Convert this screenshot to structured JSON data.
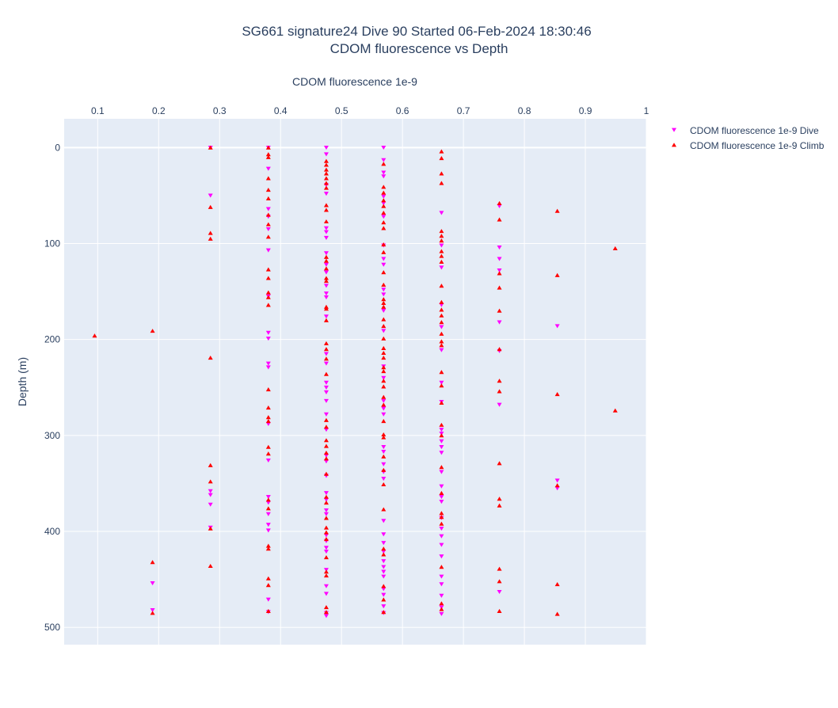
{
  "chart_data": {
    "type": "scatter",
    "title_line1": "SG661 signature24 Dive 90 Started 06-Feb-2024 18:30:46",
    "title_line2": "CDOM fluorescence vs Depth",
    "xlabel": "CDOM fluorescence 1e-9",
    "ylabel": "Depth (m)",
    "xlim": [
      0.045,
      1.0
    ],
    "ylim": [
      518,
      -30
    ],
    "x_axis_side": "top",
    "y_reversed": true,
    "grid": true,
    "x_ticks": [
      0.1,
      0.2,
      0.3,
      0.4,
      0.5,
      0.6,
      0.7,
      0.8,
      0.9,
      1
    ],
    "x_tick_labels": [
      "0.1",
      "0.2",
      "0.3",
      "0.4",
      "0.5",
      "0.6",
      "0.7",
      "0.8",
      "0.9",
      "1"
    ],
    "y_ticks": [
      0,
      100,
      200,
      300,
      400,
      500
    ],
    "y_tick_labels": [
      "0",
      "100",
      "200",
      "300",
      "400",
      "500"
    ],
    "legend_position": "top-right",
    "colors": {
      "plot_bg": "#e5ecf6",
      "grid": "#ffffff",
      "dive": "#ff00ff",
      "climb": "#ff0000"
    },
    "series": [
      {
        "name": "CDOM fluorescence 1e-9 Dive",
        "marker": "triangle-down",
        "color": "#ff00ff",
        "points": [
          [
            0.285,
            0
          ],
          [
            0.285,
            50
          ],
          [
            0.285,
            358
          ],
          [
            0.285,
            362
          ],
          [
            0.285,
            372
          ],
          [
            0.285,
            396
          ],
          [
            0.19,
            454
          ],
          [
            0.19,
            482
          ],
          [
            0.38,
            0
          ],
          [
            0.38,
            22
          ],
          [
            0.38,
            64
          ],
          [
            0.38,
            72
          ],
          [
            0.38,
            85
          ],
          [
            0.38,
            107
          ],
          [
            0.38,
            155
          ],
          [
            0.38,
            193
          ],
          [
            0.38,
            199
          ],
          [
            0.38,
            225
          ],
          [
            0.38,
            229
          ],
          [
            0.38,
            288
          ],
          [
            0.38,
            326
          ],
          [
            0.38,
            364
          ],
          [
            0.38,
            370
          ],
          [
            0.38,
            382
          ],
          [
            0.38,
            393
          ],
          [
            0.38,
            399
          ],
          [
            0.38,
            471
          ],
          [
            0.38,
            484
          ],
          [
            0.475,
            0
          ],
          [
            0.475,
            7
          ],
          [
            0.475,
            39
          ],
          [
            0.475,
            48
          ],
          [
            0.475,
            84
          ],
          [
            0.475,
            88
          ],
          [
            0.475,
            94
          ],
          [
            0.475,
            110
          ],
          [
            0.475,
            122
          ],
          [
            0.475,
            130
          ],
          [
            0.475,
            144
          ],
          [
            0.475,
            152
          ],
          [
            0.475,
            156
          ],
          [
            0.475,
            176
          ],
          [
            0.475,
            215
          ],
          [
            0.475,
            225
          ],
          [
            0.475,
            245
          ],
          [
            0.475,
            250
          ],
          [
            0.475,
            255
          ],
          [
            0.475,
            264
          ],
          [
            0.475,
            278
          ],
          [
            0.475,
            294
          ],
          [
            0.475,
            321
          ],
          [
            0.475,
            327
          ],
          [
            0.475,
            342
          ],
          [
            0.475,
            360
          ],
          [
            0.475,
            367
          ],
          [
            0.475,
            378
          ],
          [
            0.475,
            382
          ],
          [
            0.475,
            404
          ],
          [
            0.475,
            410
          ],
          [
            0.475,
            417
          ],
          [
            0.475,
            421
          ],
          [
            0.475,
            440
          ],
          [
            0.475,
            457
          ],
          [
            0.475,
            465
          ],
          [
            0.475,
            485
          ],
          [
            0.475,
            488
          ],
          [
            0.569,
            0
          ],
          [
            0.569,
            13
          ],
          [
            0.569,
            26
          ],
          [
            0.569,
            30
          ],
          [
            0.569,
            51
          ],
          [
            0.569,
            58
          ],
          [
            0.569,
            72
          ],
          [
            0.569,
            102
          ],
          [
            0.569,
            116
          ],
          [
            0.569,
            122
          ],
          [
            0.569,
            148
          ],
          [
            0.569,
            153
          ],
          [
            0.569,
            170
          ],
          [
            0.569,
            191
          ],
          [
            0.569,
            228
          ],
          [
            0.569,
            240
          ],
          [
            0.569,
            264
          ],
          [
            0.569,
            272
          ],
          [
            0.569,
            278
          ],
          [
            0.569,
            312
          ],
          [
            0.569,
            317
          ],
          [
            0.569,
            330
          ],
          [
            0.569,
            338
          ],
          [
            0.569,
            345
          ],
          [
            0.569,
            389
          ],
          [
            0.569,
            403
          ],
          [
            0.569,
            412
          ],
          [
            0.569,
            421
          ],
          [
            0.569,
            431
          ],
          [
            0.569,
            437
          ],
          [
            0.569,
            442
          ],
          [
            0.569,
            447
          ],
          [
            0.569,
            460
          ],
          [
            0.569,
            466
          ],
          [
            0.569,
            478
          ],
          [
            0.569,
            485
          ],
          [
            0.664,
            68
          ],
          [
            0.664,
            102
          ],
          [
            0.664,
            125
          ],
          [
            0.664,
            164
          ],
          [
            0.664,
            187
          ],
          [
            0.664,
            211
          ],
          [
            0.664,
            245
          ],
          [
            0.664,
            265
          ],
          [
            0.664,
            294
          ],
          [
            0.664,
            298
          ],
          [
            0.664,
            306
          ],
          [
            0.664,
            312
          ],
          [
            0.664,
            318
          ],
          [
            0.664,
            338
          ],
          [
            0.664,
            353
          ],
          [
            0.664,
            364
          ],
          [
            0.664,
            369
          ],
          [
            0.664,
            386
          ],
          [
            0.664,
            397
          ],
          [
            0.664,
            405
          ],
          [
            0.664,
            414
          ],
          [
            0.664,
            426
          ],
          [
            0.664,
            447
          ],
          [
            0.664,
            455
          ],
          [
            0.664,
            467
          ],
          [
            0.664,
            479
          ],
          [
            0.664,
            486
          ],
          [
            0.759,
            61
          ],
          [
            0.759,
            104
          ],
          [
            0.759,
            116
          ],
          [
            0.759,
            128
          ],
          [
            0.759,
            182
          ],
          [
            0.759,
            212
          ],
          [
            0.759,
            268
          ],
          [
            0.759,
            463
          ],
          [
            0.854,
            186
          ],
          [
            0.854,
            347
          ],
          [
            0.854,
            355
          ]
        ]
      },
      {
        "name": "CDOM fluorescence 1e-9 Climb",
        "marker": "triangle-up",
        "color": "#ff0000",
        "points": [
          [
            0.095,
            196
          ],
          [
            0.19,
            191
          ],
          [
            0.19,
            432
          ],
          [
            0.19,
            485
          ],
          [
            0.285,
            0
          ],
          [
            0.285,
            62
          ],
          [
            0.285,
            89
          ],
          [
            0.285,
            95
          ],
          [
            0.285,
            219
          ],
          [
            0.285,
            331
          ],
          [
            0.285,
            348
          ],
          [
            0.285,
            397
          ],
          [
            0.285,
            436
          ],
          [
            0.38,
            0
          ],
          [
            0.38,
            7
          ],
          [
            0.38,
            10
          ],
          [
            0.38,
            32
          ],
          [
            0.38,
            44
          ],
          [
            0.38,
            53
          ],
          [
            0.38,
            70
          ],
          [
            0.38,
            80
          ],
          [
            0.38,
            93
          ],
          [
            0.38,
            127
          ],
          [
            0.38,
            136
          ],
          [
            0.38,
            151
          ],
          [
            0.38,
            156
          ],
          [
            0.38,
            164
          ],
          [
            0.38,
            252
          ],
          [
            0.38,
            271
          ],
          [
            0.38,
            281
          ],
          [
            0.38,
            285
          ],
          [
            0.38,
            312
          ],
          [
            0.38,
            319
          ],
          [
            0.38,
            367
          ],
          [
            0.38,
            376
          ],
          [
            0.38,
            415
          ],
          [
            0.38,
            418
          ],
          [
            0.38,
            449
          ],
          [
            0.38,
            456
          ],
          [
            0.38,
            483
          ],
          [
            0.475,
            14
          ],
          [
            0.475,
            18
          ],
          [
            0.475,
            23
          ],
          [
            0.475,
            27
          ],
          [
            0.475,
            32
          ],
          [
            0.475,
            37
          ],
          [
            0.475,
            42
          ],
          [
            0.475,
            60
          ],
          [
            0.475,
            65
          ],
          [
            0.475,
            77
          ],
          [
            0.475,
            114
          ],
          [
            0.475,
            118
          ],
          [
            0.475,
            126
          ],
          [
            0.475,
            136
          ],
          [
            0.475,
            139
          ],
          [
            0.475,
            166
          ],
          [
            0.475,
            168
          ],
          [
            0.475,
            180
          ],
          [
            0.475,
            204
          ],
          [
            0.475,
            210
          ],
          [
            0.475,
            220
          ],
          [
            0.475,
            236
          ],
          [
            0.475,
            284
          ],
          [
            0.475,
            291
          ],
          [
            0.475,
            305
          ],
          [
            0.475,
            311
          ],
          [
            0.475,
            318
          ],
          [
            0.475,
            324
          ],
          [
            0.475,
            340
          ],
          [
            0.475,
            364
          ],
          [
            0.475,
            370
          ],
          [
            0.475,
            386
          ],
          [
            0.475,
            396
          ],
          [
            0.475,
            401
          ],
          [
            0.475,
            408
          ],
          [
            0.475,
            427
          ],
          [
            0.475,
            442
          ],
          [
            0.475,
            446
          ],
          [
            0.475,
            479
          ],
          [
            0.475,
            484
          ],
          [
            0.569,
            17
          ],
          [
            0.569,
            41
          ],
          [
            0.569,
            47
          ],
          [
            0.569,
            55
          ],
          [
            0.569,
            61
          ],
          [
            0.569,
            68
          ],
          [
            0.569,
            78
          ],
          [
            0.569,
            84
          ],
          [
            0.569,
            101
          ],
          [
            0.569,
            109
          ],
          [
            0.569,
            130
          ],
          [
            0.569,
            143
          ],
          [
            0.569,
            158
          ],
          [
            0.569,
            162
          ],
          [
            0.569,
            166
          ],
          [
            0.569,
            179
          ],
          [
            0.569,
            186
          ],
          [
            0.569,
            199
          ],
          [
            0.569,
            209
          ],
          [
            0.569,
            214
          ],
          [
            0.569,
            219
          ],
          [
            0.569,
            229
          ],
          [
            0.569,
            233
          ],
          [
            0.569,
            243
          ],
          [
            0.569,
            249
          ],
          [
            0.569,
            260
          ],
          [
            0.569,
            268
          ],
          [
            0.569,
            285
          ],
          [
            0.569,
            299
          ],
          [
            0.569,
            302
          ],
          [
            0.569,
            322
          ],
          [
            0.569,
            336
          ],
          [
            0.569,
            351
          ],
          [
            0.569,
            377
          ],
          [
            0.569,
            418
          ],
          [
            0.569,
            424
          ],
          [
            0.569,
            457
          ],
          [
            0.569,
            471
          ],
          [
            0.569,
            484
          ],
          [
            0.664,
            4
          ],
          [
            0.664,
            11
          ],
          [
            0.664,
            27
          ],
          [
            0.664,
            37
          ],
          [
            0.664,
            87
          ],
          [
            0.664,
            92
          ],
          [
            0.664,
            97
          ],
          [
            0.664,
            108
          ],
          [
            0.664,
            113
          ],
          [
            0.664,
            119
          ],
          [
            0.664,
            144
          ],
          [
            0.664,
            161
          ],
          [
            0.664,
            169
          ],
          [
            0.664,
            175
          ],
          [
            0.664,
            182
          ],
          [
            0.664,
            194
          ],
          [
            0.664,
            202
          ],
          [
            0.664,
            206
          ],
          [
            0.664,
            234
          ],
          [
            0.664,
            248
          ],
          [
            0.664,
            266
          ],
          [
            0.664,
            289
          ],
          [
            0.664,
            300
          ],
          [
            0.664,
            333
          ],
          [
            0.664,
            360
          ],
          [
            0.664,
            381
          ],
          [
            0.664,
            385
          ],
          [
            0.664,
            392
          ],
          [
            0.664,
            437
          ],
          [
            0.664,
            475
          ],
          [
            0.664,
            481
          ],
          [
            0.759,
            58
          ],
          [
            0.759,
            75
          ],
          [
            0.759,
            131
          ],
          [
            0.759,
            146
          ],
          [
            0.759,
            170
          ],
          [
            0.759,
            210
          ],
          [
            0.759,
            243
          ],
          [
            0.759,
            254
          ],
          [
            0.759,
            329
          ],
          [
            0.759,
            366
          ],
          [
            0.759,
            373
          ],
          [
            0.759,
            439
          ],
          [
            0.759,
            452
          ],
          [
            0.759,
            483
          ],
          [
            0.854,
            66
          ],
          [
            0.854,
            133
          ],
          [
            0.854,
            257
          ],
          [
            0.854,
            352
          ],
          [
            0.854,
            455
          ],
          [
            0.854,
            486
          ],
          [
            0.949,
            105
          ],
          [
            0.949,
            274
          ]
        ]
      }
    ]
  }
}
